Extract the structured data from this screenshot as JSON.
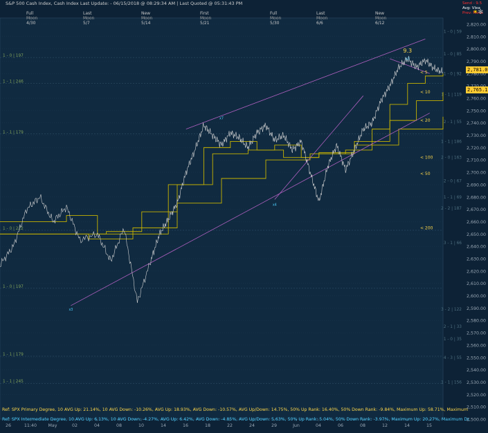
{
  "header": {
    "title": "S&P 500 Cash Index,  Cash Index  Last Update:  - 06/15/2018 @ 08:29:34 AM | Last Quoted @ 05:31:43 PM",
    "moons": [
      {
        "phase": "full",
        "a": "Full",
        "b": "Moon",
        "c": "4/30"
      },
      {
        "phase": "last",
        "a": "Last",
        "b": "Moon",
        "c": "5/7"
      },
      {
        "phase": "new",
        "a": "New",
        "b": "Moon",
        "c": "5/14"
      },
      {
        "phase": "first",
        "a": "First",
        "b": "Moon",
        "c": "5/21"
      },
      {
        "phase": "full",
        "a": "Full",
        "b": "Moon",
        "c": "5/30"
      },
      {
        "phase": "last",
        "a": "Last",
        "b": "Moon",
        "c": "6/6"
      },
      {
        "phase": "new",
        "a": "New",
        "b": "Moon",
        "c": "6/12"
      }
    ]
  },
  "top_right": {
    "line1": "Send - 9.5",
    "line2": "Avg: Vlea",
    "line3": "Prev: Move"
  },
  "price_tags": {
    "last": "2,781.00",
    "ma": "2,765.19"
  },
  "footer": {
    "line1": "Ref: SPX Primary Degree, 10 AVG Up: 21.14%, 10 AVG Down: -10.26%, AVG Up: 18.93%, AVG Down: -10.57%, AVG Up/Down: 14.75%, 50%  Up Rank: 16.40%, 50% Down Rank: -9.84%, Maximum Up: 58.71%, Maximum",
    "line2": "Ref: SPX Intermediate Degree, 10 AVG Up: 6.13%, 10 AVG Down: -4.27%, AVG Up: 6.42%, AVG Down: -4.85%, AVG Up/Down: 5.63%, 50%  Up Rank: 5.04%, 50% Down Rank: -3.97%, Maximum Up: 20.27%, Maximum Dc"
  },
  "chart_data": {
    "type": "line",
    "title": "S&P 500 Cash Index",
    "ylim": [
      2500,
      2825
    ],
    "y_ticks": [
      "2,500.00",
      "2,510.00",
      "2,520.00",
      "2,530.00",
      "2,540.00",
      "2,550.00",
      "2,560.00",
      "2,570.00",
      "2,580.00",
      "2,590.00",
      "2,600.00",
      "2,610.00",
      "2,620.00",
      "2,630.00",
      "2,640.00",
      "2,650.00",
      "2,660.00",
      "2,670.00",
      "2,680.00",
      "2,690.00",
      "2,700.00",
      "2,710.00",
      "2,720.00",
      "2,730.00",
      "2,740.00",
      "2,750.00",
      "2,760.00",
      "2,770.00",
      "2,780.00",
      "2,790.00",
      "2,800.00",
      "2,810.00",
      "2,820.00"
    ],
    "x_ticks": [
      "26",
      "11:40",
      "May",
      "02",
      "04",
      "08",
      "10",
      "14",
      "16",
      "18",
      "22",
      "24",
      "29",
      "Jun",
      "04",
      "06",
      "08",
      "12",
      "14",
      "15"
    ],
    "price_series": {
      "name": "SPX",
      "x": [
        0,
        3,
        6,
        9,
        12,
        15,
        18,
        22,
        25,
        28,
        31,
        34,
        36,
        38,
        40,
        42,
        44,
        46,
        48,
        50,
        52,
        54,
        56,
        58,
        60,
        62,
        64,
        66,
        68,
        70,
        72,
        74,
        76,
        78,
        80,
        82,
        84,
        86,
        88,
        90,
        92,
        94,
        96,
        98,
        100
      ],
      "y": [
        2625,
        2640,
        2670,
        2680,
        2660,
        2672,
        2645,
        2650,
        2628,
        2655,
        2595,
        2628,
        2650,
        2662,
        2675,
        2700,
        2718,
        2738,
        2730,
        2722,
        2732,
        2728,
        2720,
        2732,
        2738,
        2726,
        2730,
        2718,
        2725,
        2700,
        2676,
        2705,
        2722,
        2702,
        2718,
        2735,
        2740,
        2758,
        2770,
        2785,
        2792,
        2785,
        2791,
        2784,
        2781
      ]
    },
    "ma_series": [
      {
        "name": "ma_5",
        "x": [
          0,
          10,
          15,
          22,
          30,
          38,
          46,
          52,
          58,
          62,
          68,
          72,
          78,
          84,
          88,
          92,
          96,
          100
        ],
        "y": [
          2660,
          2660,
          2665,
          2650,
          2650,
          2690,
          2720,
          2725,
          2718,
          2722,
          2712,
          2715,
          2718,
          2735,
          2755,
          2772,
          2778,
          2780
        ]
      },
      {
        "name": "ma_10",
        "x": [
          0,
          15,
          24,
          32,
          40,
          48,
          56,
          64,
          72,
          80,
          88,
          94,
          100
        ],
        "y": [
          2650,
          2650,
          2652,
          2668,
          2690,
          2715,
          2718,
          2712,
          2716,
          2725,
          2742,
          2758,
          2765
        ]
      },
      {
        "name": "ma_20",
        "x": [
          0,
          20,
          30,
          40,
          50,
          60,
          70,
          80,
          90,
          100
        ],
        "y": [
          2650,
          2646,
          2655,
          2675,
          2695,
          2710,
          2715,
          2722,
          2735,
          2745
        ]
      }
    ],
    "channel_lines": [
      {
        "x": [
          16,
          97
        ],
        "y": [
          2592,
          2748
        ]
      },
      {
        "x": [
          42,
          96
        ],
        "y": [
          2735,
          2808
        ]
      },
      {
        "x": [
          88,
          97
        ],
        "y": [
          2792,
          2780
        ]
      },
      {
        "x": [
          62,
          82
        ],
        "y": [
          2678,
          2762
        ]
      }
    ],
    "ma_labels": [
      {
        "text": "< 5",
        "y": 2781
      },
      {
        "text": "< 10",
        "y": 2765
      },
      {
        "text": "< 20",
        "y": 2742
      },
      {
        "text": "< 100",
        "y": 2712
      },
      {
        "text": "< 50",
        "y": 2699
      },
      {
        "text": "< 200",
        "y": 2655
      }
    ],
    "fib_left": [
      {
        "text": "1 - 0 | 197",
        "y": 2793
      },
      {
        "text": "1 - 1 | 246",
        "y": 2772
      },
      {
        "text": "1 - 1 | 179",
        "y": 2731
      },
      {
        "text": "1 - 0 | 222",
        "y": 2653
      },
      {
        "text": "1 - 0 | 197",
        "y": 2606
      },
      {
        "text": "1 - 1 | 179",
        "y": 2551
      },
      {
        "text": "1 - 1 | 245",
        "y": 2529
      }
    ],
    "fib_right": [
      {
        "text": "1 - 0 | 59",
        "y": 2814
      },
      {
        "text": "1 - 0 | 85",
        "y": 2796
      },
      {
        "text": "1 - 0 | 92",
        "y": 2780
      },
      {
        "text": "1 - 1 | 119",
        "y": 2763
      },
      {
        "text": "2 - 1 | 55",
        "y": 2741
      },
      {
        "text": "1 - 1 | 186",
        "y": 2725
      },
      {
        "text": "2 - 0 | 163",
        "y": 2712
      },
      {
        "text": "2 - 0 | 67",
        "y": 2693
      },
      {
        "text": "1 - 1 | 69",
        "y": 2680
      },
      {
        "text": "2 - 2 | 187",
        "y": 2671
      },
      {
        "text": "3 - 1 | 66",
        "y": 2643
      },
      {
        "text": "3 - 2 | 122",
        "y": 2589
      },
      {
        "text": "2 - 1 | 33",
        "y": 2575
      },
      {
        "text": "1 - 0 | 35",
        "y": 2565
      },
      {
        "text": "4 - 3 | 55",
        "y": 2550
      },
      {
        "text": "1 - 1 | 156",
        "y": 2530
      }
    ],
    "annotations": [
      {
        "text": "9.3",
        "x": 92,
        "y": 2797
      },
      {
        "text": "x3",
        "x": 92,
        "y": 2791
      },
      {
        "text": "x7",
        "x": 50,
        "y": 2743
      },
      {
        "text": "x4",
        "x": 62,
        "y": 2673
      },
      {
        "text": "x3",
        "x": 16,
        "y": 2588
      }
    ]
  }
}
